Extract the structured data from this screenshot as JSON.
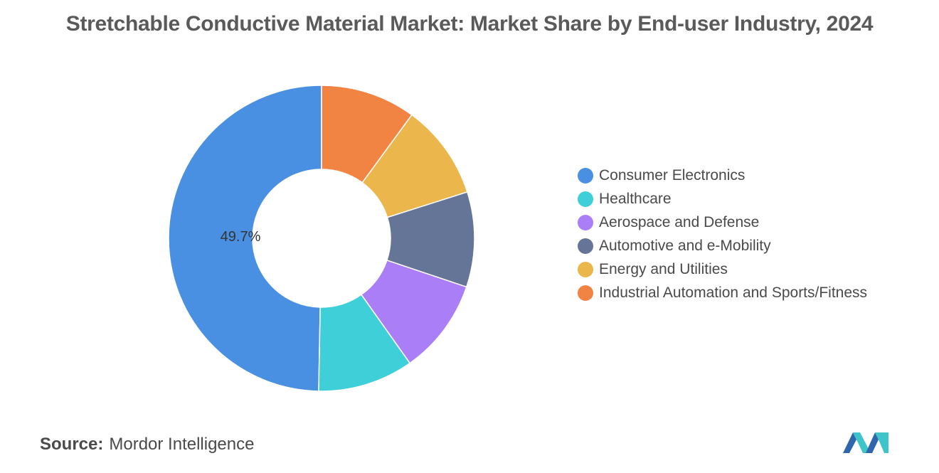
{
  "chart_data": {
    "type": "pie",
    "title": "Stretchable Conductive Material Market: Market Share by End-user Industry, 2024",
    "categories": [
      "Consumer Electronics",
      "Healthcare",
      "Aerospace and Defense",
      "Automotive and e-Mobility",
      "Energy and Utilities",
      "Industrial Automation and Sports/Fitness"
    ],
    "values": [
      49.7,
      10.1,
      10.05,
      10.05,
      10.05,
      10.05
    ],
    "colors": [
      "#4a90e2",
      "#3fcfd9",
      "#a97ef6",
      "#647597",
      "#ebb64c",
      "#f28443"
    ],
    "data_labels": [
      "49.7%",
      "",
      "",
      "",
      "",
      ""
    ],
    "legend_position": "right"
  },
  "source": {
    "label": "Source:",
    "text": "Mordor Intelligence"
  },
  "logo": {
    "icon": "mordor-intelligence-logo-icon",
    "colors": [
      "#2f66ad",
      "#3fc4c9"
    ]
  }
}
